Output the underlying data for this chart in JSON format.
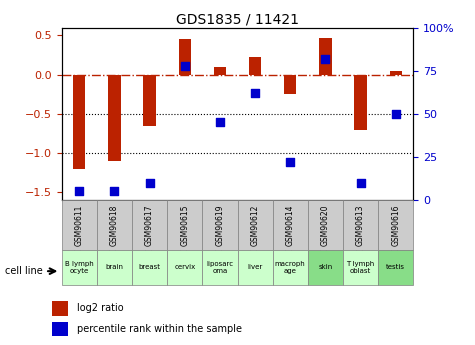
{
  "title": "GDS1835 / 11421",
  "samples": [
    "GSM90611",
    "GSM90618",
    "GSM90617",
    "GSM90615",
    "GSM90619",
    "GSM90612",
    "GSM90614",
    "GSM90620",
    "GSM90613",
    "GSM90616"
  ],
  "cell_lines": [
    "B lymph\nocyte",
    "brain",
    "breast",
    "cervix",
    "liposarc\noma",
    "liver",
    "macroph\nage",
    "skin",
    "T lymph\noblast",
    "testis"
  ],
  "log2_ratio": [
    -1.2,
    -1.1,
    -0.65,
    0.45,
    0.1,
    0.22,
    -0.25,
    0.47,
    -0.7,
    0.05
  ],
  "percentile": [
    5,
    5,
    10,
    78,
    45,
    62,
    22,
    82,
    10,
    50
  ],
  "bar_color": "#bb2200",
  "dot_color": "#0000cc",
  "bg_color_gray": "#cccccc",
  "bg_color_green_light": "#ccffcc",
  "bg_color_green_dark": "#88dd88",
  "green_colors": [
    "#ccffcc",
    "#ccffcc",
    "#ccffcc",
    "#ccffcc",
    "#ccffcc",
    "#ccffcc",
    "#ccffcc",
    "#88dd88",
    "#ccffcc",
    "#88dd88"
  ],
  "ylim_left": [
    -1.6,
    0.6
  ],
  "ylim_right": [
    0,
    100
  ],
  "yticks_left": [
    0.5,
    0,
    -0.5,
    -1.0,
    -1.5
  ],
  "yticks_right": [
    0,
    25,
    50,
    75,
    100
  ],
  "dotted_lines": [
    -0.5,
    -1.0
  ],
  "bar_width": 0.35,
  "dot_size": 40
}
